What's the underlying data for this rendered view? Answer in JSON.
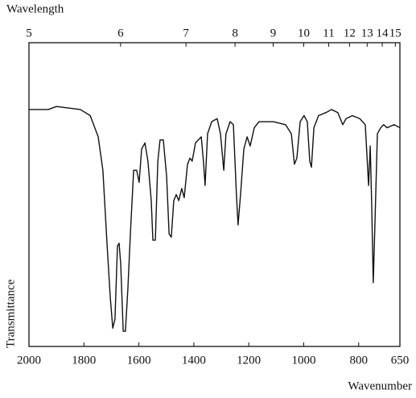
{
  "chart_data": {
    "type": "line",
    "x_label": "Wavenumber",
    "y_label": "Transmittance",
    "x2_label": "Wavelength",
    "xlim": [
      2000,
      650
    ],
    "xticks": [
      2000,
      1800,
      1600,
      1400,
      1200,
      1000,
      800,
      650
    ],
    "x2ticks": [
      5,
      6,
      7,
      8,
      9,
      10,
      11,
      12,
      13,
      14,
      15
    ],
    "ylim": [
      0,
      100
    ],
    "color": "#111111",
    "x": [
      2000,
      1930,
      1900,
      1813,
      1777,
      1748,
      1731,
      1716,
      1704,
      1695,
      1687,
      1678,
      1672,
      1666,
      1657,
      1649,
      1640,
      1631,
      1619,
      1608,
      1599,
      1590,
      1578,
      1567,
      1555,
      1549,
      1540,
      1531,
      1523,
      1511,
      1499,
      1490,
      1482,
      1473,
      1464,
      1455,
      1444,
      1435,
      1423,
      1414,
      1406,
      1394,
      1373,
      1365,
      1359,
      1350,
      1335,
      1315,
      1303,
      1291,
      1283,
      1268,
      1256,
      1245,
      1239,
      1230,
      1218,
      1206,
      1195,
      1180,
      1163,
      1110,
      1066,
      1045,
      1034,
      1025,
      1013,
      999,
      987,
      978,
      972,
      963,
      946,
      919,
      899,
      876,
      858,
      846,
      823,
      796,
      776,
      764,
      758,
      753,
      747,
      741,
      732,
      720,
      709,
      697,
      671,
      650
    ],
    "values": [
      78,
      78,
      79,
      78,
      76,
      69,
      58,
      34,
      16,
      6,
      9,
      33,
      34,
      27,
      5,
      5,
      19,
      37,
      58,
      58,
      54,
      65,
      67,
      61,
      48,
      35,
      35,
      61,
      68,
      68,
      56,
      37,
      36,
      48,
      50,
      48,
      52,
      49,
      60,
      62,
      61,
      67,
      69,
      61,
      53,
      70,
      74,
      75,
      70,
      58,
      70,
      74,
      73,
      50,
      40,
      50,
      65,
      69,
      66,
      72,
      74,
      74,
      73,
      70,
      60,
      62,
      74,
      76,
      74,
      61,
      59,
      72,
      76,
      77,
      78,
      77,
      73,
      75,
      76,
      75,
      73,
      53,
      66,
      48,
      21,
      40,
      70,
      72,
      73,
      72,
      73,
      72
    ]
  }
}
